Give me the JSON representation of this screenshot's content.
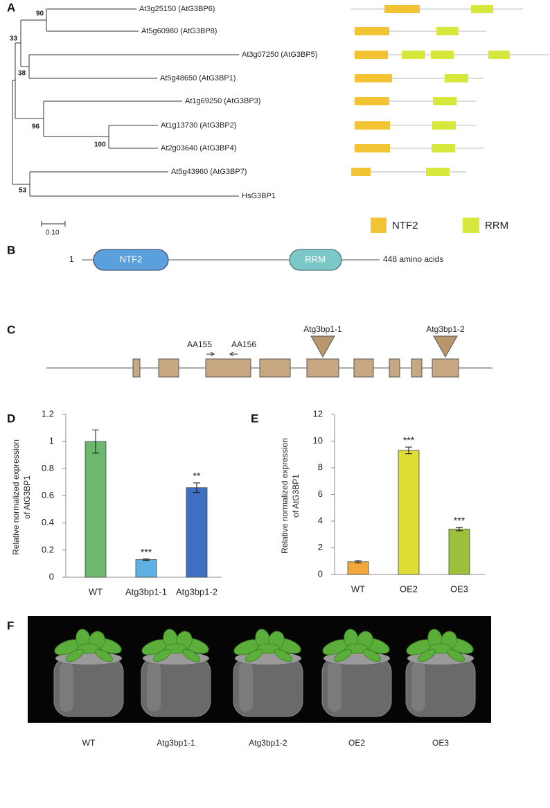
{
  "panel_labels": [
    "A",
    "B",
    "C",
    "D",
    "E",
    "F"
  ],
  "panel_a": {
    "leaves": [
      "At3g25150 (AtG3BP6)",
      "At5g60980 (AtG3BP8)",
      "At3g07250 (AtG3BP5)",
      "At5g48650 (AtG3BP1)",
      "At1g69250 (AtG3BP3)",
      "At1g13730 (AtG3BP2)",
      "At2g03640 (AtG3BP4)",
      "At5g43960 (AtG3BP7)",
      "HsG3BP1"
    ],
    "bootstrap": [
      90,
      33,
      38,
      96,
      100,
      53
    ],
    "scale_bar": "0.10",
    "legend": [
      "NTF2",
      "RRM"
    ]
  },
  "panel_b": {
    "start": 1,
    "domains": [
      "NTF2",
      "RRM"
    ],
    "length": "448 amino acids"
  },
  "panel_c": {
    "primers": [
      "AA155",
      "AA156"
    ],
    "insertions": [
      "Atg3bp1-1",
      "Atg3bp1-2"
    ]
  },
  "chart_data": [
    {
      "type": "bar",
      "ylabel": [
        "Relative normalized expression",
        "of AtG3BP1"
      ],
      "categories": [
        "WT",
        "Atg3bp1-1",
        "Atg3bp1-2"
      ],
      "values": [
        1.0,
        0.13,
        0.66
      ],
      "errors": [
        0.085,
        0.005,
        0.035
      ],
      "colors": [
        "#6cb86c",
        "#5fb0e2",
        "#3d70c0"
      ],
      "annotations": [
        null,
        "***",
        "**"
      ],
      "ylim": [
        0,
        1.2
      ],
      "yticks": [
        0,
        0.2,
        0.4,
        0.6,
        0.8,
        1,
        1.2
      ]
    },
    {
      "type": "bar",
      "ylabel": [
        "Relative normalized expression",
        "of AtG3BP1"
      ],
      "categories": [
        "WT",
        "OE2",
        "OE3"
      ],
      "values": [
        0.95,
        9.3,
        3.4
      ],
      "errors": [
        0.08,
        0.25,
        0.12
      ],
      "colors": [
        "#f0a83a",
        "#dede34",
        "#9cc03c"
      ],
      "annotations": [
        null,
        "***",
        "***"
      ],
      "ylim": [
        0,
        12
      ],
      "yticks": [
        0,
        2,
        4,
        6,
        8,
        10,
        12
      ]
    }
  ],
  "panel_f": {
    "labels": [
      "WT",
      "Atg3bp1-1",
      "Atg3bp1-2",
      "OE2",
      "OE3"
    ]
  }
}
